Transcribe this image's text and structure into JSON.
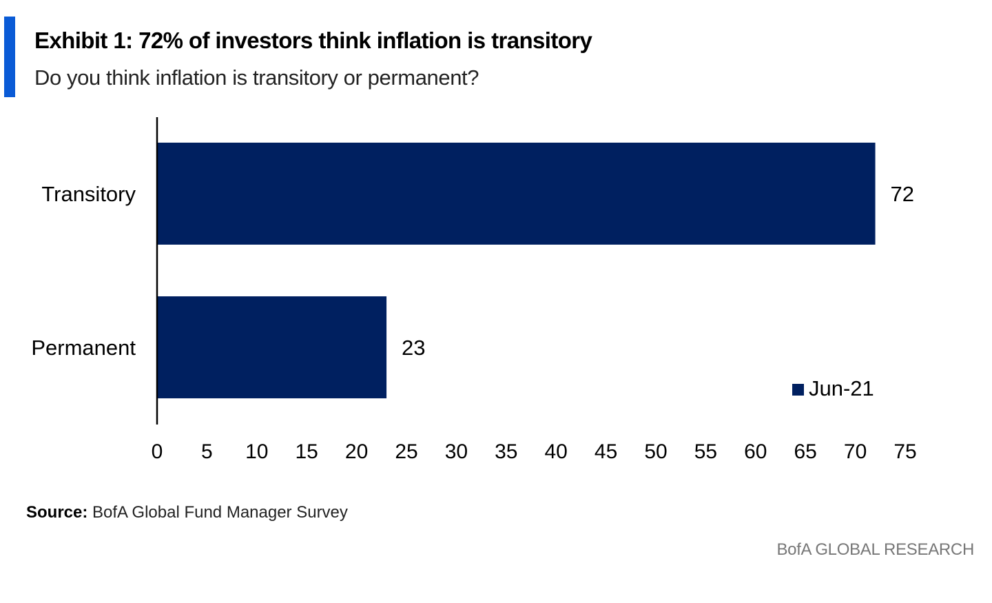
{
  "exhibit": {
    "title": "Exhibit 1: 72% of investors think inflation is transitory",
    "subtitle": "Do you think inflation is transitory or permanent?"
  },
  "chart_data": {
    "type": "bar",
    "orientation": "horizontal",
    "categories": [
      "Transitory",
      "Permanent"
    ],
    "series": [
      {
        "name": "Jun-21",
        "values": [
          72,
          23
        ],
        "color": "#002060"
      }
    ],
    "data_labels": [
      "72",
      "23"
    ],
    "xlim": [
      0,
      75
    ],
    "xticks": [
      0,
      5,
      10,
      15,
      20,
      25,
      30,
      35,
      40,
      45,
      50,
      55,
      60,
      65,
      70,
      75
    ],
    "xlabel": "",
    "ylabel": "",
    "grid": false,
    "legend": {
      "entries": [
        "Jun-21"
      ],
      "placement": "bottom-right"
    }
  },
  "footer": {
    "source_label": "Source:",
    "source_text": "BofA Global Fund Manager Survey",
    "brand": "BofA GLOBAL RESEARCH"
  },
  "colors": {
    "accent": "#0a5bd6",
    "bar": "#002060",
    "brand_text": "#777777"
  }
}
